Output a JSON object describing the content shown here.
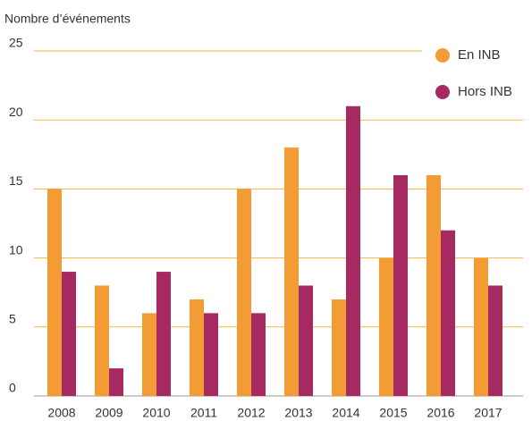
{
  "chart_data": {
    "type": "bar",
    "y_label": "Nombre d’événements",
    "categories": [
      "2008",
      "2009",
      "2010",
      "2011",
      "2012",
      "2013",
      "2014",
      "2015",
      "2016",
      "2017"
    ],
    "series": [
      {
        "name": "En INB",
        "color": "#f39c35",
        "values": [
          15,
          8,
          6,
          7,
          15,
          18,
          7,
          10,
          16,
          10
        ]
      },
      {
        "name": "Hors INB",
        "color": "#a62a61",
        "values": [
          9,
          2,
          9,
          6,
          6,
          8,
          21,
          16,
          12,
          8
        ]
      }
    ],
    "ylim": [
      0,
      25
    ],
    "yticks": [
      0,
      5,
      10,
      15,
      20,
      25
    ],
    "grid": true,
    "legend": "top-right"
  }
}
